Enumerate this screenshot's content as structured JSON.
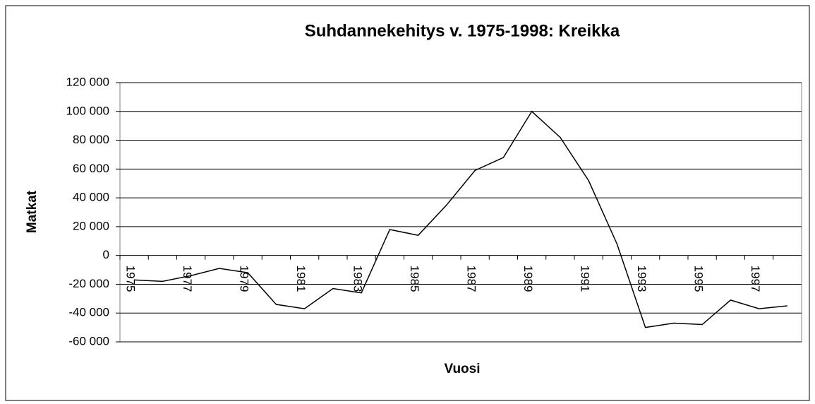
{
  "chart_data": {
    "type": "line",
    "title": "Suhdannekehitys v. 1975-1998: Kreikka",
    "x_label": "Vuosi",
    "y_label": "Matkat",
    "categories": [
      "1975",
      null,
      "1977",
      null,
      "1979",
      null,
      "1981",
      null,
      "1983",
      null,
      "1985",
      null,
      "1987",
      null,
      "1989",
      null,
      "1991",
      null,
      "1993",
      null,
      "1995",
      null,
      "1997",
      null
    ],
    "series": [
      {
        "name": "Kreikka",
        "color": "#000000",
        "values": [
          -17000,
          -18000,
          -14000,
          -9000,
          -12000,
          -34000,
          -37000,
          -23000,
          -26000,
          18000,
          14000,
          35000,
          59000,
          68000,
          100000,
          82000,
          52000,
          8000,
          -50000,
          -47000,
          -48000,
          -31000,
          -37000,
          -35000
        ]
      }
    ],
    "ylim": [
      -60000,
      120000
    ],
    "yticks": [
      {
        "value": -60000,
        "label": "-60 000"
      },
      {
        "value": -40000,
        "label": "-40 000"
      },
      {
        "value": -20000,
        "label": "-20 000"
      },
      0,
      {
        "value": 20000,
        "label": "20 000"
      },
      {
        "value": 40000,
        "label": "40 000"
      },
      {
        "value": 60000,
        "label": "60 000"
      },
      {
        "value": 80000,
        "label": "80 000"
      },
      {
        "value": 100000,
        "label": "100 000"
      },
      {
        "value": 120000,
        "label": "120 000"
      }
    ],
    "grid": true
  }
}
